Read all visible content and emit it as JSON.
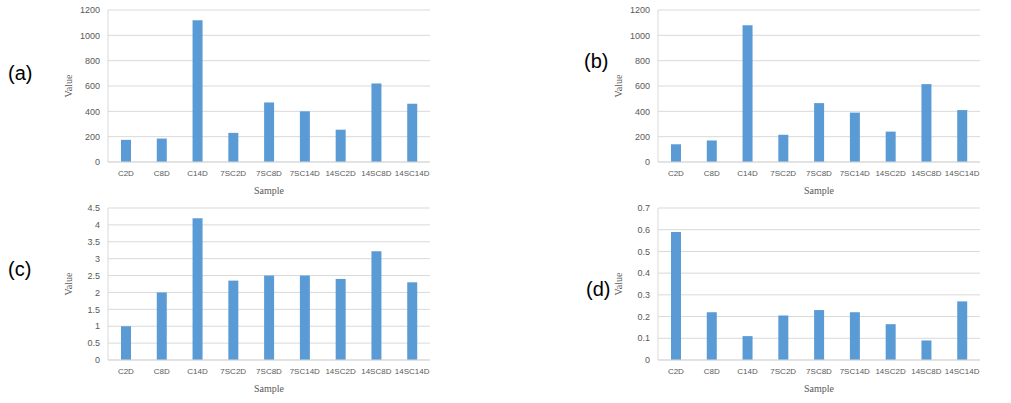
{
  "chart_data": [
    {
      "type": "bar",
      "title": "(a)",
      "x_label": "Sample",
      "y_label": "Value",
      "categories": [
        "C2D",
        "C8D",
        "C14D",
        "7SC2D",
        "7SC8D",
        "7SC14D",
        "14SC2D",
        "14SC8D",
        "14SC14D"
      ],
      "values": [
        175,
        185,
        1120,
        230,
        470,
        400,
        255,
        620,
        460
      ],
      "color": "#5b9bd5",
      "ylim": [
        0,
        1200
      ],
      "yticks": [
        0,
        200,
        400,
        600,
        800,
        1000,
        1200
      ],
      "grid": true
    },
    {
      "type": "bar",
      "title": "(b)",
      "x_label": "Sample",
      "y_label": "Value",
      "categories": [
        "C2D",
        "C8D",
        "C14D",
        "7SC2D",
        "7SC8D",
        "7SC14D",
        "14SC2D",
        "14SC8D",
        "14SC14D"
      ],
      "values": [
        140,
        170,
        1080,
        215,
        465,
        390,
        240,
        615,
        410
      ],
      "color": "#5b9bd5",
      "ylim": [
        0,
        1200
      ],
      "yticks": [
        0,
        200,
        400,
        600,
        800,
        1000,
        1200
      ],
      "grid": true
    },
    {
      "type": "bar",
      "title": "(c)",
      "x_label": "Sample",
      "y_label": "Value",
      "categories": [
        "C2D",
        "C8D",
        "C14D",
        "7SC2D",
        "7SC8D",
        "7SC14D",
        "14SC2D",
        "14SC8D",
        "14SC14D"
      ],
      "values": [
        1,
        2,
        4.2,
        2.35,
        2.5,
        2.5,
        2.4,
        3.22,
        2.3
      ],
      "color": "#5b9bd5",
      "ylim": [
        0,
        4.5
      ],
      "yticks": [
        0,
        0.5,
        1,
        1.5,
        2,
        2.5,
        3,
        3.5,
        4,
        4.5
      ],
      "grid": true
    },
    {
      "type": "bar",
      "title": "(d)",
      "x_label": "Sample",
      "y_label": "Value",
      "categories": [
        "C2D",
        "C8D",
        "C14D",
        "7SC2D",
        "7SC8D",
        "7SC14D",
        "14SC2D",
        "14SC8D",
        "14SC14D"
      ],
      "values": [
        0.59,
        0.22,
        0.11,
        0.205,
        0.23,
        0.22,
        0.165,
        0.09,
        0.27
      ],
      "color": "#5b9bd5",
      "ylim": [
        0,
        0.7
      ],
      "yticks": [
        0,
        0.1,
        0.2,
        0.3,
        0.4,
        0.5,
        0.6,
        0.7
      ],
      "grid": true
    }
  ]
}
